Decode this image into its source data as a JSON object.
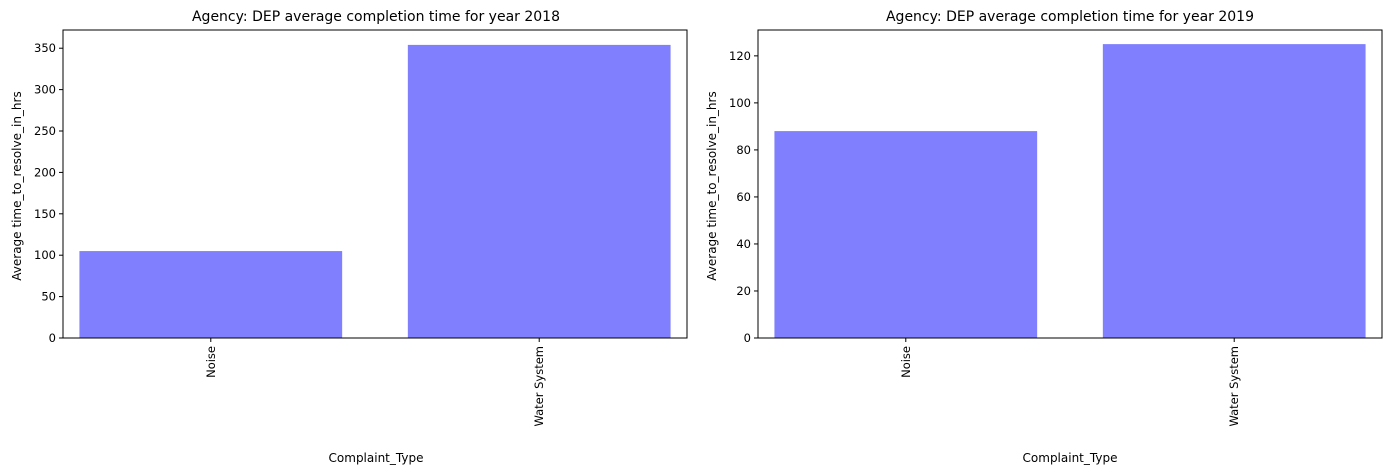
{
  "chart_data": [
    {
      "type": "bar",
      "title": "Agency: DEP average completion time for year 2018",
      "xlabel": "Complaint_Type",
      "ylabel": "Average time_to_resolve_in_hrs",
      "categories": [
        "Noise",
        "Water System"
      ],
      "values": [
        105,
        354
      ],
      "ylim": [
        0,
        372
      ],
      "yticks": [
        0,
        50,
        100,
        150,
        200,
        250,
        300,
        350
      ],
      "grid": false,
      "bar_color": "#8080ff"
    },
    {
      "type": "bar",
      "title": "Agency: DEP average completion time for year 2019",
      "xlabel": "Complaint_Type",
      "ylabel": "Average time_to_resolve_in_hrs",
      "categories": [
        "Noise",
        "Water System"
      ],
      "values": [
        88,
        125
      ],
      "ylim": [
        0,
        131
      ],
      "yticks": [
        0,
        20,
        40,
        60,
        80,
        100,
        120
      ],
      "grid": false,
      "bar_color": "#8080ff"
    }
  ]
}
